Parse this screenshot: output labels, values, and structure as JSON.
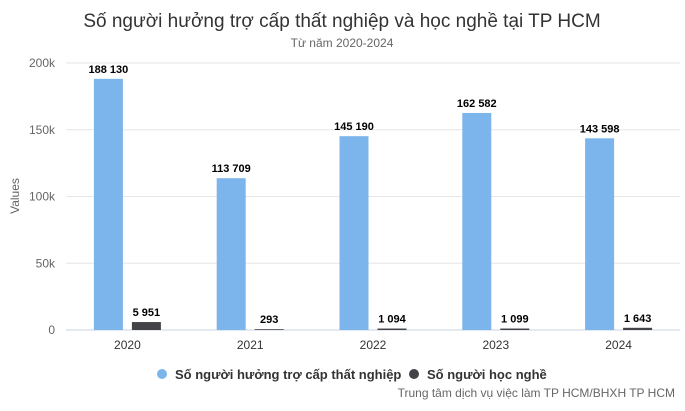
{
  "chart_data": {
    "type": "bar",
    "title": "Số người hưởng trợ cấp thất nghiệp và học nghề tại TP HCM",
    "subtitle": "Từ năm 2020-2024",
    "xlabel": "",
    "ylabel": "Values",
    "ylim": [
      0,
      200000
    ],
    "yticks": [
      0,
      50000,
      100000,
      150000,
      200000
    ],
    "ytick_labels": [
      "0",
      "50k",
      "100k",
      "150k",
      "200k"
    ],
    "grid": true,
    "legend_position": "bottom-center",
    "categories": [
      "2020",
      "2021",
      "2022",
      "2023",
      "2024"
    ],
    "series": [
      {
        "name": "Số người hưởng trợ cấp thất nghiệp",
        "color": "#7cb5ec",
        "values": [
          188130,
          113709,
          145190,
          162582,
          143598
        ],
        "labels": [
          "188 130",
          "113 709",
          "145 190",
          "162 582",
          "143 598"
        ]
      },
      {
        "name": "Số người học nghề",
        "color": "#434348",
        "values": [
          5951,
          293,
          1094,
          1099,
          1643
        ],
        "labels": [
          "5 951",
          "293",
          "1 094",
          "1 099",
          "1 643"
        ]
      }
    ],
    "credit": "Trung tâm dịch vụ việc làm TP HCM/BHXH TP HCM"
  }
}
